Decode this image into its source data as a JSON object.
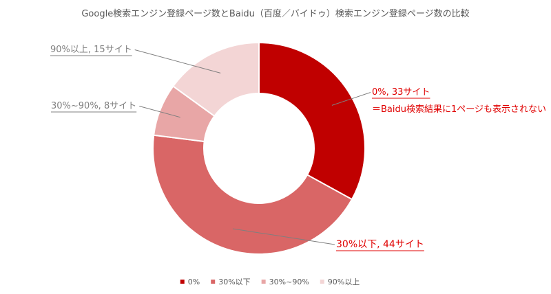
{
  "chart_data": {
    "type": "pie",
    "donut": true,
    "title": "Google検索エンジン登録ページ数とBaidu（百度／バイドゥ）検索エンジン登録ページ数の比較",
    "categories": [
      "0%",
      "30%以下",
      "30%~90%",
      "90%以上"
    ],
    "values": [
      33,
      44,
      8,
      15
    ],
    "colors": [
      "#c00000",
      "#d96666",
      "#e8a6a6",
      "#f3d5d5"
    ],
    "data_labels": [
      "0%, 33サイト",
      "30%以下, 44サイト",
      "30%~90%, 8サイト",
      "90%以上, 15サイト"
    ],
    "annotation": "＝Baidu検索結果に1ページも表示されない",
    "legend_position": "bottom"
  }
}
